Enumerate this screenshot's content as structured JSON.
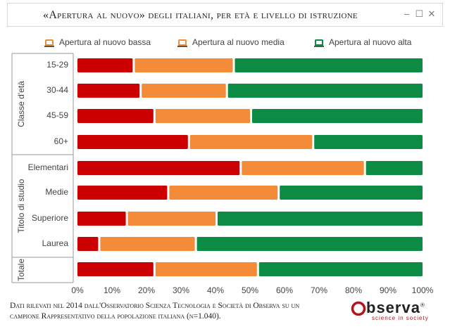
{
  "window": {
    "title": "«Apertura al nuovo» degli italiani, per età e livello di istruzione",
    "controls": [
      "–",
      "☐",
      "✕"
    ]
  },
  "chart_data": {
    "type": "bar",
    "orientation": "horizontal",
    "stacked": "percent",
    "title": "«Apertura al nuovo» degli italiani, per età e livello di istruzione",
    "groups": [
      {
        "label": "Classe d'età",
        "categories": [
          "15-29",
          "30-44",
          "45-59",
          "60+"
        ]
      },
      {
        "label": "Titolo di studio",
        "categories": [
          "Elementari",
          "Medie",
          "Superiore",
          "Laurea"
        ]
      },
      {
        "label": "Totale",
        "categories": [
          ""
        ]
      }
    ],
    "categories": [
      "15-29",
      "30-44",
      "45-59",
      "60+",
      "Elementari",
      "Medie",
      "Superiore",
      "Laurea",
      ""
    ],
    "series": [
      {
        "name": "Apertura al nuovo bassa",
        "color": "#cc0000",
        "values": [
          16,
          18,
          22,
          32,
          47,
          26,
          14,
          6,
          22
        ]
      },
      {
        "name": "Apertura al nuovo media",
        "color": "#f38b38",
        "values": [
          29,
          25,
          28,
          36,
          36,
          32,
          26,
          28,
          30
        ]
      },
      {
        "name": "Apertura al nuovo alta",
        "color": "#0c8b45",
        "values": [
          55,
          57,
          50,
          32,
          17,
          42,
          60,
          66,
          48
        ]
      }
    ],
    "xlim": [
      0,
      100
    ],
    "xticks": [
      "0%",
      "10%",
      "20%",
      "30%",
      "40%",
      "50%",
      "60%",
      "70%",
      "80%",
      "90%",
      "100%"
    ],
    "legend_position": "top",
    "grid": false
  },
  "footer": {
    "note": "Dati rilevati nel 2014 dall'Osservatorio Scienza Tecnologia e Società di Observa su un campione Rappresentativo della popolazione italiana (n=1.040).",
    "logo_text": "bserva",
    "logo_mark": "®",
    "logo_tagline": "science in society"
  }
}
